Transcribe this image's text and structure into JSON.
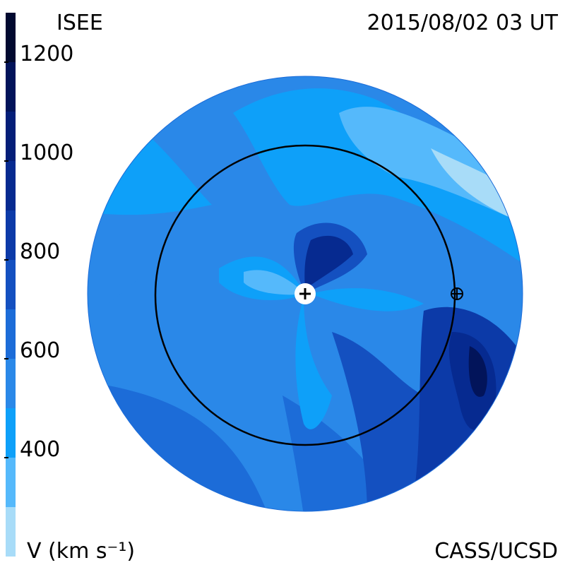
{
  "title": "ISEE",
  "timestamp": "2015/08/02 03 UT",
  "credit": "CASS/UCSD",
  "colorbar": {
    "label": "V (km s⁻¹)",
    "lim": [
      200,
      1300
    ],
    "ticks": [
      400,
      600,
      800,
      1000,
      1200
    ],
    "levels": [
      200,
      300,
      400,
      500,
      600,
      700,
      800,
      900,
      1000,
      1100,
      1200,
      1300
    ],
    "colors": [
      "#a8dcf8",
      "#55b9fb",
      "#0ea0f9",
      "#2a88e8",
      "#1c6cd8",
      "#1450c0",
      "#0c3aa8",
      "#062a90",
      "#041e78",
      "#02145a",
      "#010a30"
    ]
  }
}
